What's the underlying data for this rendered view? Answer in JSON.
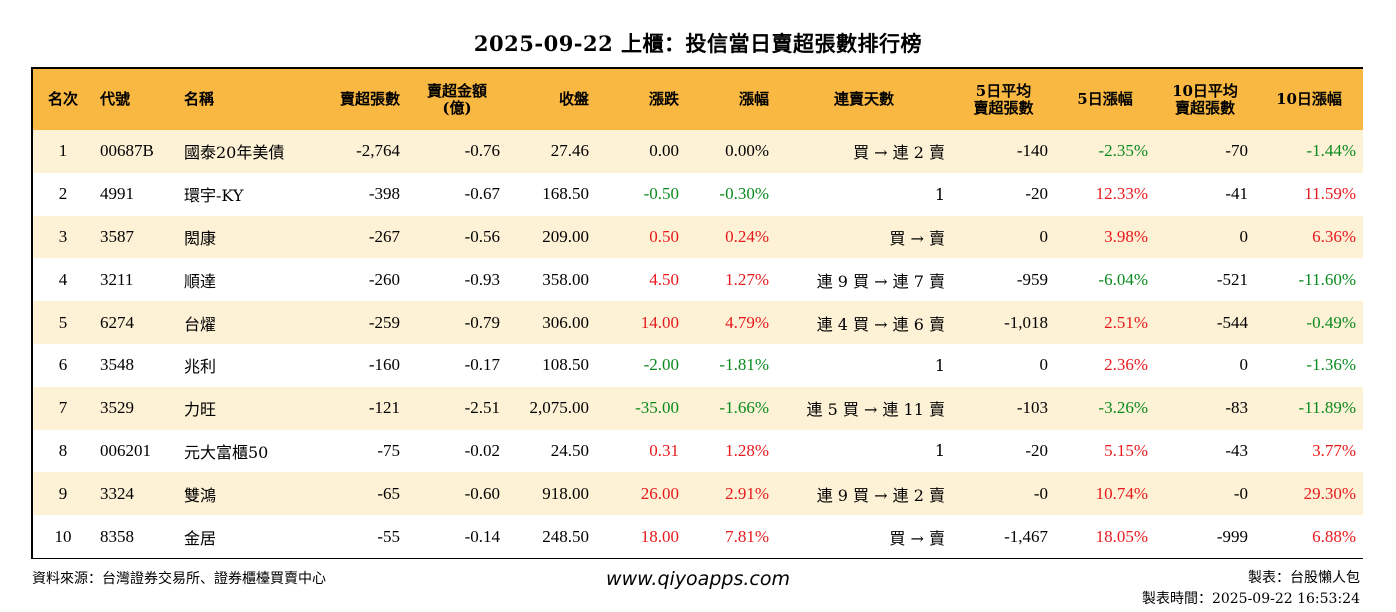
{
  "title": "2025-09-22 上櫃：投信當日賣超張數排行榜",
  "columns": {
    "rank": "名次",
    "code": "代號",
    "name": "名稱",
    "net_sell_lots": "賣超張數",
    "net_sell_amount_l1": "賣超金額",
    "net_sell_amount_l2": "(億)",
    "close": "收盤",
    "change": "漲跌",
    "change_pct": "漲幅",
    "consecutive_days": "連賣天數",
    "avg5_l1": "5日平均",
    "avg5_l2": "賣超張數",
    "pct5": "5日漲幅",
    "avg10_l1": "10日平均",
    "avg10_l2": "賣超張數",
    "pct10": "10日漲幅"
  },
  "colors": {
    "header_bg": "#f8b842",
    "stripe_bg": "#fdf1d6",
    "up": "#e8191c",
    "down": "#0a8a1e"
  },
  "rows": [
    {
      "rank": "1",
      "code": "00687B",
      "name": "國泰20年美債",
      "lots": "-2,764",
      "amount": "-0.76",
      "close": "27.46",
      "change": "0.00",
      "change_pct": "0.00%",
      "days": "買 → 連 2 賣",
      "avg5": "-140",
      "pct5": "-2.35%",
      "avg10": "-70",
      "pct10": "-1.44%",
      "chg_color": "none",
      "pct5_color": "green",
      "pct10_color": "green"
    },
    {
      "rank": "2",
      "code": "4991",
      "name": "環宇-KY",
      "lots": "-398",
      "amount": "-0.67",
      "close": "168.50",
      "change": "-0.50",
      "change_pct": "-0.30%",
      "days": "1",
      "avg5": "-20",
      "pct5": "12.33%",
      "avg10": "-41",
      "pct10": "11.59%",
      "chg_color": "green",
      "pct5_color": "red",
      "pct10_color": "red"
    },
    {
      "rank": "3",
      "code": "3587",
      "name": "閎康",
      "lots": "-267",
      "amount": "-0.56",
      "close": "209.00",
      "change": "0.50",
      "change_pct": "0.24%",
      "days": "買 → 賣",
      "avg5": "0",
      "pct5": "3.98%",
      "avg10": "0",
      "pct10": "6.36%",
      "chg_color": "red",
      "pct5_color": "red",
      "pct10_color": "red"
    },
    {
      "rank": "4",
      "code": "3211",
      "name": "順達",
      "lots": "-260",
      "amount": "-0.93",
      "close": "358.00",
      "change": "4.50",
      "change_pct": "1.27%",
      "days": "連 9 買 → 連 7 賣",
      "avg5": "-959",
      "pct5": "-6.04%",
      "avg10": "-521",
      "pct10": "-11.60%",
      "chg_color": "red",
      "pct5_color": "green",
      "pct10_color": "green"
    },
    {
      "rank": "5",
      "code": "6274",
      "name": "台燿",
      "lots": "-259",
      "amount": "-0.79",
      "close": "306.00",
      "change": "14.00",
      "change_pct": "4.79%",
      "days": "連 4 買 → 連 6 賣",
      "avg5": "-1,018",
      "pct5": "2.51%",
      "avg10": "-544",
      "pct10": "-0.49%",
      "chg_color": "red",
      "pct5_color": "red",
      "pct10_color": "green"
    },
    {
      "rank": "6",
      "code": "3548",
      "name": "兆利",
      "lots": "-160",
      "amount": "-0.17",
      "close": "108.50",
      "change": "-2.00",
      "change_pct": "-1.81%",
      "days": "1",
      "avg5": "0",
      "pct5": "2.36%",
      "avg10": "0",
      "pct10": "-1.36%",
      "chg_color": "green",
      "pct5_color": "red",
      "pct10_color": "green"
    },
    {
      "rank": "7",
      "code": "3529",
      "name": "力旺",
      "lots": "-121",
      "amount": "-2.51",
      "close": "2,075.00",
      "change": "-35.00",
      "change_pct": "-1.66%",
      "days": "連 5 買 → 連 11 賣",
      "avg5": "-103",
      "pct5": "-3.26%",
      "avg10": "-83",
      "pct10": "-11.89%",
      "chg_color": "green",
      "pct5_color": "green",
      "pct10_color": "green"
    },
    {
      "rank": "8",
      "code": "006201",
      "name": "元大富櫃50",
      "lots": "-75",
      "amount": "-0.02",
      "close": "24.50",
      "change": "0.31",
      "change_pct": "1.28%",
      "days": "1",
      "avg5": "-20",
      "pct5": "5.15%",
      "avg10": "-43",
      "pct10": "3.77%",
      "chg_color": "red",
      "pct5_color": "red",
      "pct10_color": "red"
    },
    {
      "rank": "9",
      "code": "3324",
      "name": "雙鴻",
      "lots": "-65",
      "amount": "-0.60",
      "close": "918.00",
      "change": "26.00",
      "change_pct": "2.91%",
      "days": "連 9 買 → 連 2 賣",
      "avg5": "-0",
      "pct5": "10.74%",
      "avg10": "-0",
      "pct10": "29.30%",
      "chg_color": "red",
      "pct5_color": "red",
      "pct10_color": "red"
    },
    {
      "rank": "10",
      "code": "8358",
      "name": "金居",
      "lots": "-55",
      "amount": "-0.14",
      "close": "248.50",
      "change": "18.00",
      "change_pct": "7.81%",
      "days": "買 → 賣",
      "avg5": "-1,467",
      "pct5": "18.05%",
      "avg10": "-999",
      "pct10": "6.88%",
      "chg_color": "red",
      "pct5_color": "red",
      "pct10_color": "red"
    }
  ],
  "footer": {
    "source": "資料來源：台灣證券交易所、證券櫃檯買賣中心",
    "website": "www.qiyoapps.com",
    "maker": "製表：台股懶人包",
    "time": "製表時間：2025-09-22 16:53:24"
  }
}
